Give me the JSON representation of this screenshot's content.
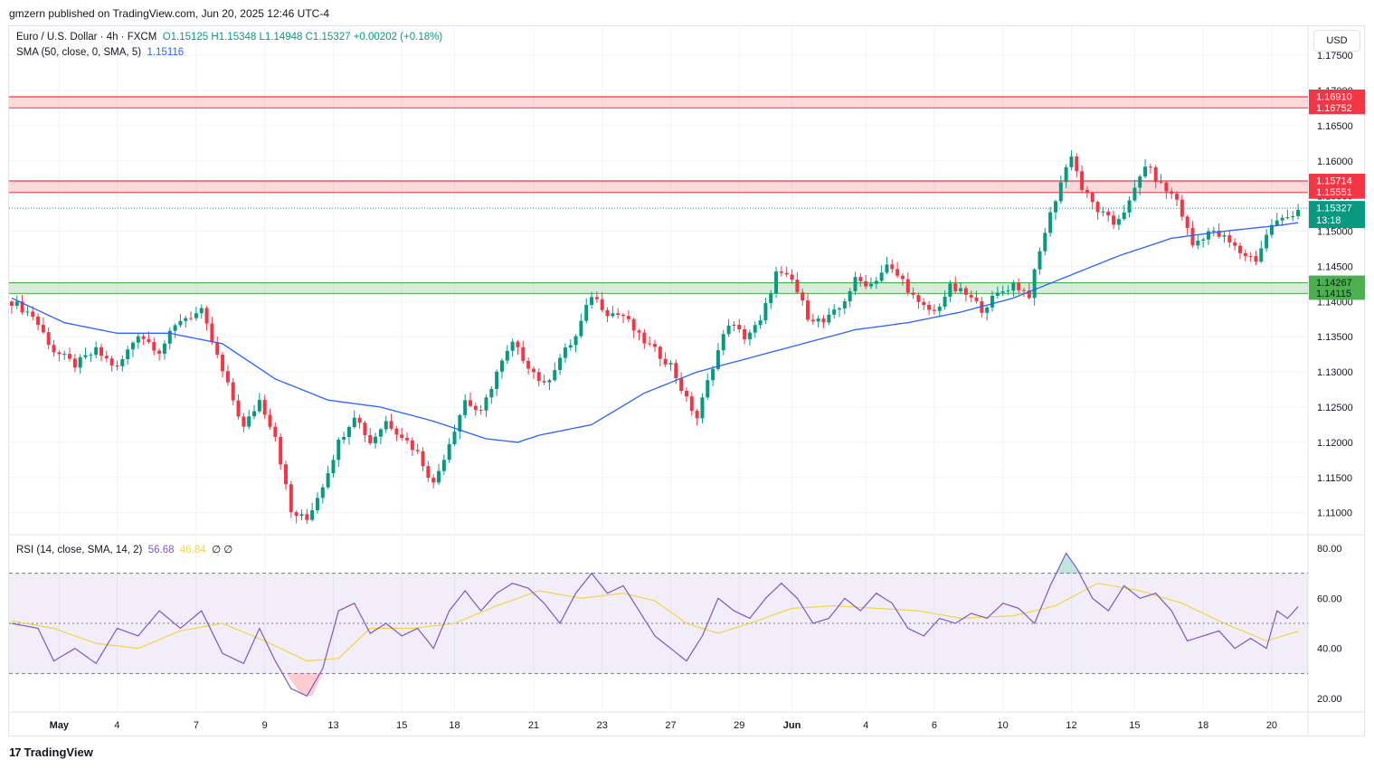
{
  "header": {
    "published_line": "gmzern published on TradingView.com, Jun 20, 2025 12:46 UTC-4"
  },
  "legend": {
    "symbol": "Euro / U.S. Dollar · 4h · FXCM",
    "ohlc": "O1.15125  H1.15348  L1.14948  C1.15327  +0.00202 (+0.18%)",
    "sma_label": "SMA (50, close, 0, SMA, 5)",
    "sma_value": "1.15116",
    "rsi_label": "RSI (14, close, SMA, 14, 2)",
    "rsi_value": "56.68",
    "rsi_ma_value": "46.84",
    "rsi_extra": "∅  ∅"
  },
  "currency_button": "USD",
  "footer": {
    "logo_text": "TradingView",
    "logo_mark": "17"
  },
  "colors": {
    "up": "#089981",
    "down": "#f23645",
    "sma": "#2962ff",
    "rsi": "#7e57c2",
    "rsi_ma": "#f0d44a",
    "resistance_zone": "#f23645",
    "support_zone": "#4caf50"
  },
  "chart_data": [
    {
      "type": "candlestick",
      "title": "Euro / U.S. Dollar · 4h · FXCM",
      "ylim": [
        1.107,
        1.179
      ],
      "y_ticks": [
        "1.17500",
        "1.17000",
        "1.16500",
        "1.16000",
        "1.15500",
        "1.15000",
        "1.14500",
        "1.14000",
        "1.13500",
        "1.13000",
        "1.12500",
        "1.12000",
        "1.11500",
        "1.11000"
      ],
      "x_ticks": [
        "May",
        "4",
        "7",
        "9",
        "13",
        "15",
        "18",
        "21",
        "23",
        "27",
        "29",
        "Jun",
        "4",
        "6",
        "10",
        "12",
        "15",
        "18",
        "20"
      ],
      "zones": [
        {
          "name": "resistance",
          "low": 1.16752,
          "high": 1.1691,
          "low_label": "1.16752",
          "high_label": "1.16910"
        },
        {
          "name": "resistance",
          "low": 1.15551,
          "high": 1.15714,
          "low_label": "1.15551",
          "high_label": "1.15714"
        },
        {
          "name": "support",
          "low": 1.14115,
          "high": 1.14267,
          "low_label": "1.14115",
          "high_label": "1.14267"
        }
      ],
      "last_price": {
        "value": 1.15327,
        "label": "1.15327",
        "countdown": "13:18"
      },
      "sma_last": {
        "value": 1.15116,
        "label": "1.15116"
      },
      "path_points": [
        [
          0,
          1.14
        ],
        [
          4,
          1.138
        ],
        [
          8,
          1.133
        ],
        [
          12,
          1.131
        ],
        [
          16,
          1.133
        ],
        [
          20,
          1.1305
        ],
        [
          24,
          1.1355
        ],
        [
          28,
          1.133
        ],
        [
          32,
          1.1375
        ],
        [
          36,
          1.1385
        ],
        [
          40,
          1.13
        ],
        [
          44,
          1.122
        ],
        [
          47,
          1.126
        ],
        [
          50,
          1.121
        ],
        [
          53,
          1.11
        ],
        [
          56,
          1.109
        ],
        [
          59,
          1.114
        ],
        [
          62,
          1.12
        ],
        [
          65,
          1.124
        ],
        [
          68,
          1.12
        ],
        [
          71,
          1.123
        ],
        [
          74,
          1.121
        ],
        [
          77,
          1.1185
        ],
        [
          80,
          1.114
        ],
        [
          83,
          1.12
        ],
        [
          86,
          1.126
        ],
        [
          89,
          1.124
        ],
        [
          92,
          1.13
        ],
        [
          95,
          1.134
        ],
        [
          98,
          1.131
        ],
        [
          101,
          1.128
        ],
        [
          104,
          1.132
        ],
        [
          107,
          1.135
        ],
        [
          110,
          1.141
        ],
        [
          113,
          1.1385
        ],
        [
          116,
          1.138
        ],
        [
          119,
          1.135
        ],
        [
          122,
          1.133
        ],
        [
          125,
          1.131
        ],
        [
          128,
          1.126
        ],
        [
          130,
          1.1235
        ],
        [
          133,
          1.131
        ],
        [
          136,
          1.137
        ],
        [
          139,
          1.135
        ],
        [
          142,
          1.137
        ],
        [
          145,
          1.144
        ],
        [
          148,
          1.143
        ],
        [
          151,
          1.138
        ],
        [
          154,
          1.137
        ],
        [
          157,
          1.139
        ],
        [
          160,
          1.143
        ],
        [
          163,
          1.1425
        ],
        [
          166,
          1.145
        ],
        [
          169,
          1.143
        ],
        [
          172,
          1.1395
        ],
        [
          175,
          1.1385
        ],
        [
          178,
          1.142
        ],
        [
          181,
          1.141
        ],
        [
          184,
          1.139
        ],
        [
          187,
          1.141
        ],
        [
          190,
          1.1425
        ],
        [
          193,
          1.141
        ],
        [
          196,
          1.15
        ],
        [
          199,
          1.157
        ],
        [
          201,
          1.161
        ],
        [
          203,
          1.156
        ],
        [
          206,
          1.153
        ],
        [
          209,
          1.151
        ],
        [
          212,
          1.154
        ],
        [
          215,
          1.1595
        ],
        [
          218,
          1.1565
        ],
        [
          221,
          1.1545
        ],
        [
          224,
          1.148
        ],
        [
          227,
          1.15
        ],
        [
          230,
          1.149
        ],
        [
          233,
          1.147
        ],
        [
          236,
          1.146
        ],
        [
          239,
          1.151
        ],
        [
          242,
          1.152
        ],
        [
          244,
          1.1532
        ]
      ],
      "sma_points": [
        [
          0,
          1.1405
        ],
        [
          10,
          1.137
        ],
        [
          20,
          1.1355
        ],
        [
          30,
          1.1355
        ],
        [
          40,
          1.134
        ],
        [
          50,
          1.129
        ],
        [
          60,
          1.126
        ],
        [
          70,
          1.125
        ],
        [
          80,
          1.123
        ],
        [
          90,
          1.1205
        ],
        [
          96,
          1.12
        ],
        [
          100,
          1.121
        ],
        [
          110,
          1.1225
        ],
        [
          120,
          1.127
        ],
        [
          130,
          1.13
        ],
        [
          140,
          1.132
        ],
        [
          150,
          1.134
        ],
        [
          160,
          1.136
        ],
        [
          170,
          1.137
        ],
        [
          180,
          1.1385
        ],
        [
          190,
          1.1405
        ],
        [
          200,
          1.1435
        ],
        [
          210,
          1.1465
        ],
        [
          220,
          1.149
        ],
        [
          230,
          1.15
        ],
        [
          240,
          1.1508
        ],
        [
          244,
          1.1512
        ]
      ],
      "x_tick_positions": [
        9,
        20,
        35,
        48,
        61,
        74,
        84,
        99,
        112,
        125,
        138,
        148,
        162,
        175,
        188,
        201,
        213,
        226,
        239
      ],
      "bar_count": 245
    },
    {
      "type": "line",
      "title": "RSI (14, close, SMA, 14, 2)",
      "ylim": [
        15,
        85
      ],
      "y_ticks": [
        "80.00",
        "60.00",
        "40.00",
        "20.00"
      ],
      "bands": {
        "upper": 70,
        "middle": 50,
        "lower": 30
      },
      "series": [
        {
          "name": "RSI",
          "points": [
            [
              0,
              50
            ],
            [
              5,
              48
            ],
            [
              8,
              35
            ],
            [
              12,
              40
            ],
            [
              16,
              34
            ],
            [
              20,
              48
            ],
            [
              24,
              45
            ],
            [
              28,
              55
            ],
            [
              32,
              48
            ],
            [
              36,
              55
            ],
            [
              40,
              38
            ],
            [
              44,
              34
            ],
            [
              47,
              48
            ],
            [
              50,
              35
            ],
            [
              53,
              24
            ],
            [
              56,
              21
            ],
            [
              59,
              32
            ],
            [
              62,
              55
            ],
            [
              65,
              58
            ],
            [
              68,
              46
            ],
            [
              71,
              50
            ],
            [
              74,
              45
            ],
            [
              77,
              48
            ],
            [
              80,
              40
            ],
            [
              83,
              55
            ],
            [
              86,
              63
            ],
            [
              89,
              55
            ],
            [
              92,
              62
            ],
            [
              95,
              66
            ],
            [
              98,
              64
            ],
            [
              101,
              58
            ],
            [
              104,
              50
            ],
            [
              107,
              62
            ],
            [
              110,
              70
            ],
            [
              113,
              62
            ],
            [
              116,
              65
            ],
            [
              119,
              55
            ],
            [
              122,
              45
            ],
            [
              125,
              40
            ],
            [
              128,
              35
            ],
            [
              131,
              45
            ],
            [
              134,
              60
            ],
            [
              137,
              55
            ],
            [
              140,
              52
            ],
            [
              143,
              60
            ],
            [
              146,
              66
            ],
            [
              149,
              60
            ],
            [
              152,
              50
            ],
            [
              155,
              52
            ],
            [
              158,
              60
            ],
            [
              161,
              55
            ],
            [
              164,
              62
            ],
            [
              167,
              58
            ],
            [
              170,
              48
            ],
            [
              173,
              45
            ],
            [
              176,
              52
            ],
            [
              179,
              50
            ],
            [
              182,
              54
            ],
            [
              185,
              52
            ],
            [
              188,
              58
            ],
            [
              191,
              56
            ],
            [
              194,
              50
            ],
            [
              197,
              65
            ],
            [
              200,
              78
            ],
            [
              202,
              72
            ],
            [
              205,
              60
            ],
            [
              208,
              55
            ],
            [
              211,
              65
            ],
            [
              214,
              60
            ],
            [
              217,
              62
            ],
            [
              220,
              55
            ],
            [
              223,
              43
            ],
            [
              226,
              45
            ],
            [
              229,
              47
            ],
            [
              232,
              40
            ],
            [
              235,
              44
            ],
            [
              238,
              40
            ],
            [
              240,
              55
            ],
            [
              242,
              52
            ],
            [
              244,
              56.68
            ]
          ]
        },
        {
          "name": "RSI-based MA",
          "points": [
            [
              0,
              51
            ],
            [
              8,
              48
            ],
            [
              16,
              42
            ],
            [
              24,
              40
            ],
            [
              32,
              47
            ],
            [
              40,
              50
            ],
            [
              48,
              43
            ],
            [
              56,
              35
            ],
            [
              62,
              36
            ],
            [
              68,
              48
            ],
            [
              76,
              48
            ],
            [
              84,
              50
            ],
            [
              92,
              57
            ],
            [
              100,
              63
            ],
            [
              108,
              60
            ],
            [
              116,
              62
            ],
            [
              122,
              59
            ],
            [
              128,
              50
            ],
            [
              134,
              46
            ],
            [
              140,
              50
            ],
            [
              148,
              56
            ],
            [
              156,
              57
            ],
            [
              164,
              56
            ],
            [
              172,
              55
            ],
            [
              180,
              52
            ],
            [
              190,
              53
            ],
            [
              198,
              57
            ],
            [
              206,
              66
            ],
            [
              214,
              63
            ],
            [
              222,
              58
            ],
            [
              230,
              50
            ],
            [
              238,
              43
            ],
            [
              244,
              46.84
            ]
          ]
        }
      ],
      "x_ticks": [
        "May",
        "4",
        "7",
        "9",
        "13",
        "15",
        "18",
        "21",
        "23",
        "27",
        "29",
        "Jun",
        "4",
        "6",
        "10",
        "12",
        "15",
        "18",
        "20"
      ]
    }
  ]
}
